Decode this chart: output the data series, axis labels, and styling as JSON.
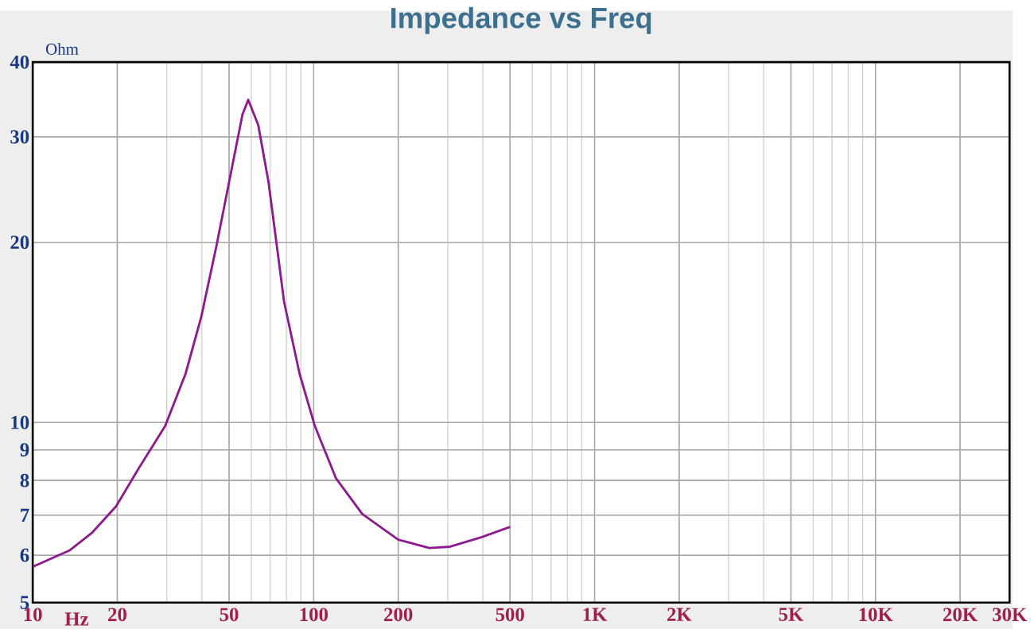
{
  "chart_data": {
    "type": "line",
    "title": "Impedance vs Freq",
    "xlabel": "Hz",
    "ylabel": "Ohm",
    "log": "xy",
    "grid": true,
    "marker": "none",
    "line_style": "solid",
    "xlim": [
      10,
      30000
    ],
    "ylim": [
      5,
      40
    ],
    "xticks": [
      10,
      20,
      50,
      100,
      200,
      500,
      {
        "value": 1000,
        "label": "1K"
      },
      {
        "value": 2000,
        "label": "2K"
      },
      {
        "value": 5000,
        "label": "5K"
      },
      {
        "value": 10000,
        "label": "10K"
      },
      {
        "value": 20000,
        "label": "20K"
      },
      {
        "value": 30000,
        "label": "30K"
      }
    ],
    "yticks": [
      5,
      6,
      7,
      8,
      9,
      10,
      20,
      30,
      40
    ],
    "x": [
      10,
      13.5,
      16.3,
      19.8,
      23.9,
      29.6,
      35.0,
      39.8,
      45.2,
      51.3,
      55.8,
      58.5,
      63.5,
      69.1,
      78.5,
      89.1,
      101,
      120,
      149,
      200,
      258,
      306,
      395,
      500
    ],
    "series": [
      {
        "color": "#8e1b8e",
        "values": [
          5.74,
          6.11,
          6.55,
          7.24,
          8.4,
          9.86,
          12.06,
          15.0,
          19.85,
          26.8,
          32.7,
          34.6,
          31.4,
          25.2,
          15.9,
          12.06,
          9.86,
          8.07,
          7.03,
          6.37,
          6.17,
          6.2,
          6.43,
          6.69
        ]
      }
    ]
  }
}
